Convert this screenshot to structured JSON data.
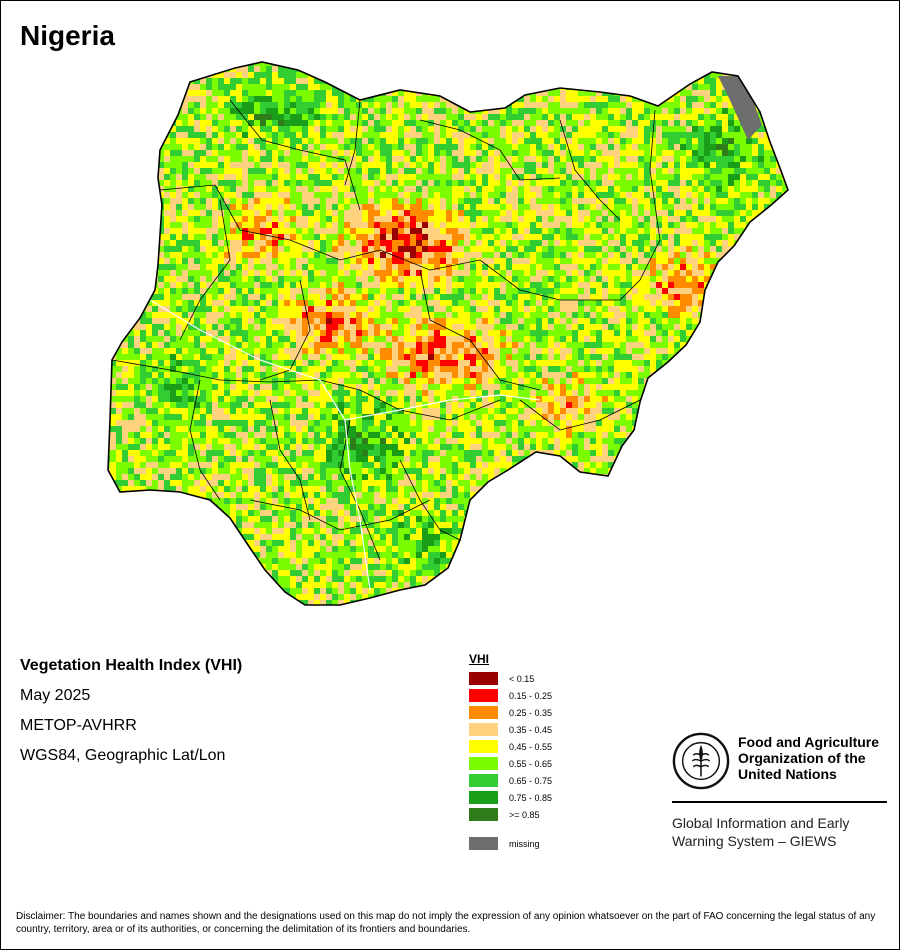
{
  "title": "Nigeria",
  "info": {
    "name": "Vegetation Health Index (VHI)",
    "period": "May 2025",
    "sensor": "METOP-AVHRR",
    "projection": "WGS84, Geographic Lat/Lon"
  },
  "legend": {
    "title": "VHI",
    "classes": [
      {
        "label": "< 0.15",
        "color": "#990000"
      },
      {
        "label": "0.15 - 0.25",
        "color": "#ff0000"
      },
      {
        "label": "0.25 - 0.35",
        "color": "#ff8c00"
      },
      {
        "label": "0.35 - 0.45",
        "color": "#ffd27f"
      },
      {
        "label": "0.45 - 0.55",
        "color": "#ffff00"
      },
      {
        "label": "0.55 - 0.65",
        "color": "#7cfc00"
      },
      {
        "label": "0.65 - 0.75",
        "color": "#32cd32"
      },
      {
        "label": "0.75 - 0.85",
        "color": "#1a9e1a"
      },
      {
        "label": ">= 0.85",
        "color": "#2e7d1a"
      }
    ],
    "missing": {
      "label": "missing",
      "color": "#6e6e6e"
    }
  },
  "logo": {
    "org_name": "Food and Agriculture Organization of the United Nations",
    "system": "Global Information and Early Warning System – GIEWS"
  },
  "disclaimer": "Disclaimer: The boundaries and names shown and the designations used on this map do not imply the expression of any opinion whatsoever on the part of FAO concerning the legal status of any country, territory, area or of its authorities, or concerning the delimitation of its frontiers and boundaries."
}
